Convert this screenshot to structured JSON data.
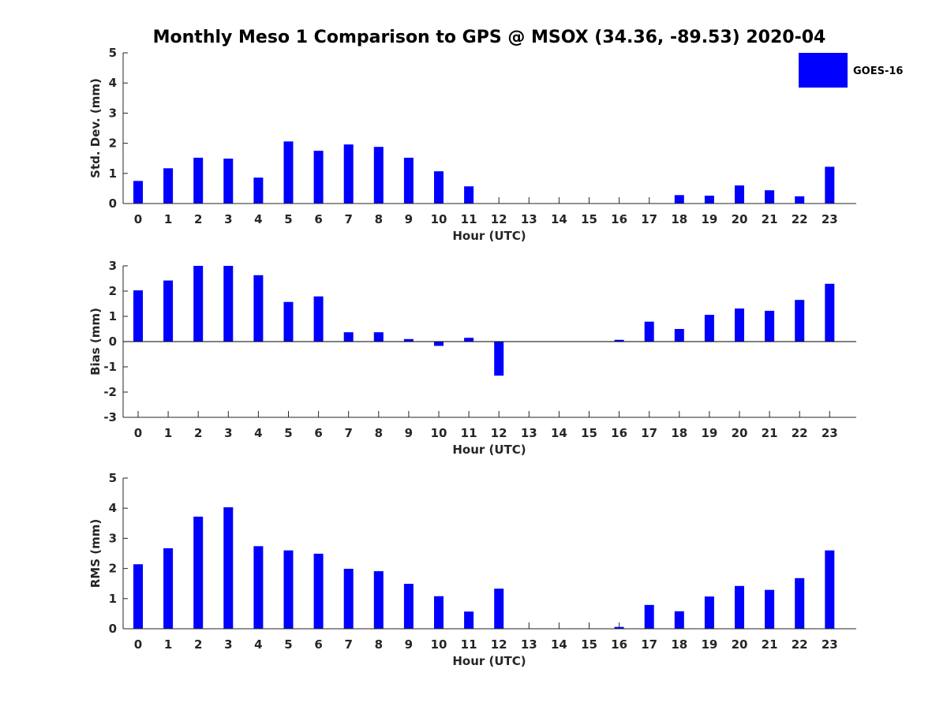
{
  "figure": {
    "title": "Monthly Meso 1 Comparison to GPS @ MSOX (34.36, -89.53) 2020-04",
    "legend": {
      "label": "GOES-16",
      "color": "#0000ff",
      "placement": "top-right"
    }
  },
  "chart_data": [
    {
      "type": "bar",
      "xlabel": "Hour (UTC)",
      "ylabel": "Std. Dev. (mm)",
      "ylim": [
        0,
        5
      ],
      "yticks": [
        "0",
        "1",
        "2",
        "3",
        "4",
        "5"
      ],
      "categories": [
        "0",
        "1",
        "2",
        "3",
        "4",
        "5",
        "6",
        "7",
        "8",
        "9",
        "10",
        "11",
        "12",
        "13",
        "14",
        "15",
        "16",
        "17",
        "18",
        "19",
        "20",
        "21",
        "22",
        "23"
      ],
      "series": [
        {
          "name": "GOES-16",
          "color": "#0000ff",
          "values": [
            0.75,
            1.17,
            1.52,
            1.49,
            0.86,
            2.06,
            1.75,
            1.96,
            1.88,
            1.52,
            1.07,
            0.57,
            0,
            0,
            0,
            0,
            0,
            0,
            0.28,
            0.26,
            0.6,
            0.44,
            0.24,
            1.22
          ]
        }
      ]
    },
    {
      "type": "bar",
      "xlabel": "Hour (UTC)",
      "ylabel": "Bias (mm)",
      "ylim": [
        -3,
        3
      ],
      "yticks": [
        "-3",
        "-2",
        "-1",
        "0",
        "1",
        "2",
        "3"
      ],
      "categories": [
        "0",
        "1",
        "2",
        "3",
        "4",
        "5",
        "6",
        "7",
        "8",
        "9",
        "10",
        "11",
        "12",
        "13",
        "14",
        "15",
        "16",
        "17",
        "18",
        "19",
        "20",
        "21",
        "22",
        "23"
      ],
      "series": [
        {
          "name": "GOES-16",
          "color": "#0000ff",
          "values": [
            2.03,
            2.42,
            3.0,
            3.0,
            2.63,
            1.57,
            1.79,
            0.37,
            0.37,
            0.1,
            -0.17,
            0.15,
            -1.35,
            0,
            0,
            0,
            0.07,
            0.79,
            0.5,
            1.06,
            1.31,
            1.22,
            1.65,
            2.29
          ]
        }
      ]
    },
    {
      "type": "bar",
      "xlabel": "Hour (UTC)",
      "ylabel": "RMS (mm)",
      "ylim": [
        0,
        5
      ],
      "yticks": [
        "0",
        "1",
        "2",
        "3",
        "4",
        "5"
      ],
      "categories": [
        "0",
        "1",
        "2",
        "3",
        "4",
        "5",
        "6",
        "7",
        "8",
        "9",
        "10",
        "11",
        "12",
        "13",
        "14",
        "15",
        "16",
        "17",
        "18",
        "19",
        "20",
        "21",
        "22",
        "23"
      ],
      "series": [
        {
          "name": "GOES-16",
          "color": "#0000ff",
          "values": [
            2.14,
            2.67,
            3.72,
            4.03,
            2.74,
            2.6,
            2.49,
            1.99,
            1.91,
            1.49,
            1.08,
            0.57,
            1.33,
            0,
            0,
            0,
            0.06,
            0.79,
            0.58,
            1.07,
            1.42,
            1.29,
            1.68,
            2.6
          ]
        }
      ]
    }
  ]
}
